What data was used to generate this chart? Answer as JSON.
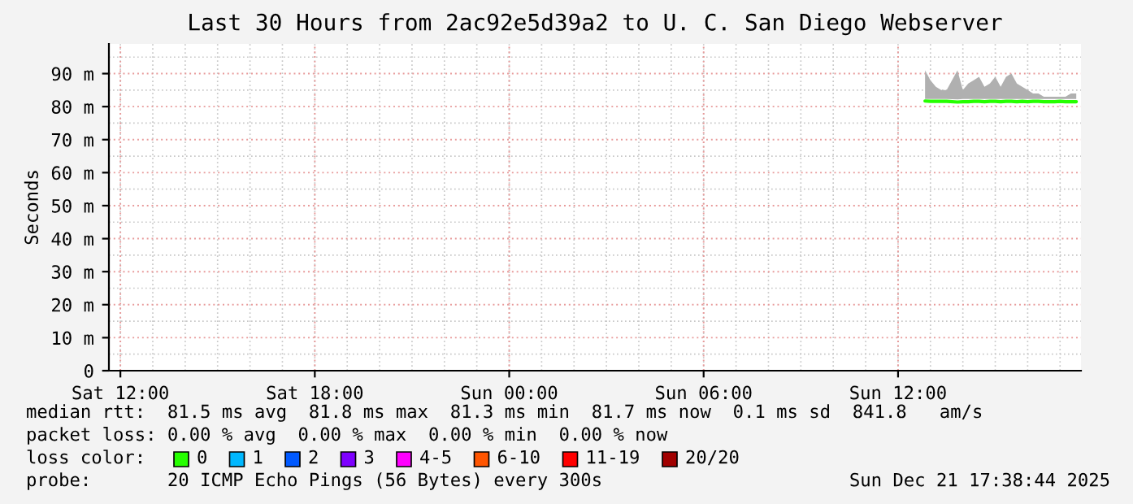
{
  "chart_data": {
    "type": "line",
    "title": "Last 30 Hours from 2ac92e5d39a2 to U. C. San Diego Webserver",
    "ylabel": "Seconds",
    "xlim": [
      "2025-12-20T11:38:44",
      "2025-12-21T17:38:44"
    ],
    "xticks": [
      {
        "value": "2025-12-20T12:00",
        "label": "Sat 12:00"
      },
      {
        "value": "2025-12-20T18:00",
        "label": "Sat 18:00"
      },
      {
        "value": "2025-12-21T00:00",
        "label": "Sun 00:00"
      },
      {
        "value": "2025-12-21T06:00",
        "label": "Sun 06:00"
      },
      {
        "value": "2025-12-21T12:00",
        "label": "Sun 12:00"
      }
    ],
    "ylim": [
      0,
      99
    ],
    "yticks": [
      0,
      {
        "value": 10,
        "label": "10 m"
      },
      {
        "value": 20,
        "label": "20 m"
      },
      {
        "value": 30,
        "label": "30 m"
      },
      {
        "value": 40,
        "label": "40 m"
      },
      {
        "value": 50,
        "label": "50 m"
      },
      {
        "value": 60,
        "label": "60 m"
      },
      {
        "value": 70,
        "label": "70 m"
      },
      {
        "value": 80,
        "label": "80 m"
      },
      {
        "value": 90,
        "label": "90 m"
      }
    ],
    "grid": true,
    "legend": "bottom",
    "legend_title": "loss color:",
    "series": [
      {
        "name": "0",
        "color": "#26ff00",
        "x": [
          "2025-12-21T12:50",
          "2025-12-21T13:00",
          "2025-12-21T13:10",
          "2025-12-21T13:20",
          "2025-12-21T13:30",
          "2025-12-21T13:50",
          "2025-12-21T14:00",
          "2025-12-21T14:10",
          "2025-12-21T14:20",
          "2025-12-21T14:30",
          "2025-12-21T14:40",
          "2025-12-21T14:50",
          "2025-12-21T15:00",
          "2025-12-21T15:10",
          "2025-12-21T15:20",
          "2025-12-21T15:30",
          "2025-12-21T15:40",
          "2025-12-21T15:50",
          "2025-12-21T16:00",
          "2025-12-21T16:10",
          "2025-12-21T16:20",
          "2025-12-21T16:30",
          "2025-12-21T16:40",
          "2025-12-21T16:50",
          "2025-12-21T17:00",
          "2025-12-21T17:10",
          "2025-12-21T17:20",
          "2025-12-21T17:30"
        ],
        "values": [
          81.7,
          81.6,
          81.6,
          81.6,
          81.6,
          81.4,
          81.5,
          81.5,
          81.6,
          81.6,
          81.5,
          81.6,
          81.6,
          81.5,
          81.6,
          81.6,
          81.5,
          81.6,
          81.5,
          81.6,
          81.6,
          81.5,
          81.5,
          81.5,
          81.6,
          81.5,
          81.5,
          81.5
        ],
        "lower": [
          82.3,
          82.3,
          82.3,
          82.3,
          82.3,
          82.2,
          82.3,
          82.3,
          82.3,
          82.3,
          82.3,
          82.3,
          82.3,
          82.3,
          82.3,
          82.3,
          82.3,
          82.3,
          82.3,
          82.3,
          82.3,
          82.3,
          82.3,
          82.3,
          82.3,
          82.3,
          82.3,
          82.3
        ],
        "upper": [
          91,
          88,
          86,
          85,
          85,
          91,
          85,
          87,
          88,
          89,
          86,
          87,
          89,
          86,
          89,
          90,
          87,
          86,
          85,
          84,
          84,
          83,
          83,
          83,
          83,
          83,
          84,
          84
        ]
      },
      {
        "name": "1",
        "color": "#00b8ff"
      },
      {
        "name": "2",
        "color": "#0059ff"
      },
      {
        "name": "3",
        "color": "#7e00ff"
      },
      {
        "name": "4-5",
        "color": "#ff00ff"
      },
      {
        "name": "6-10",
        "color": "#ff5500"
      },
      {
        "name": "11-19",
        "color": "#ff0000"
      },
      {
        "name": "20/20",
        "color": "#a10000"
      }
    ],
    "annotations": [
      "median rtt:  81.5 ms avg  81.8 ms max  81.3 ms min  81.7 ms now  0.1 ms sd  841.8   am/s",
      "packet loss: 0.00 % avg  0.00 % max  0.00 % min  0.00 % now",
      "probe:       20 ICMP Echo Pings (56 Bytes) every 300s",
      "Sun Dec 21 17:38:44 2025"
    ]
  }
}
